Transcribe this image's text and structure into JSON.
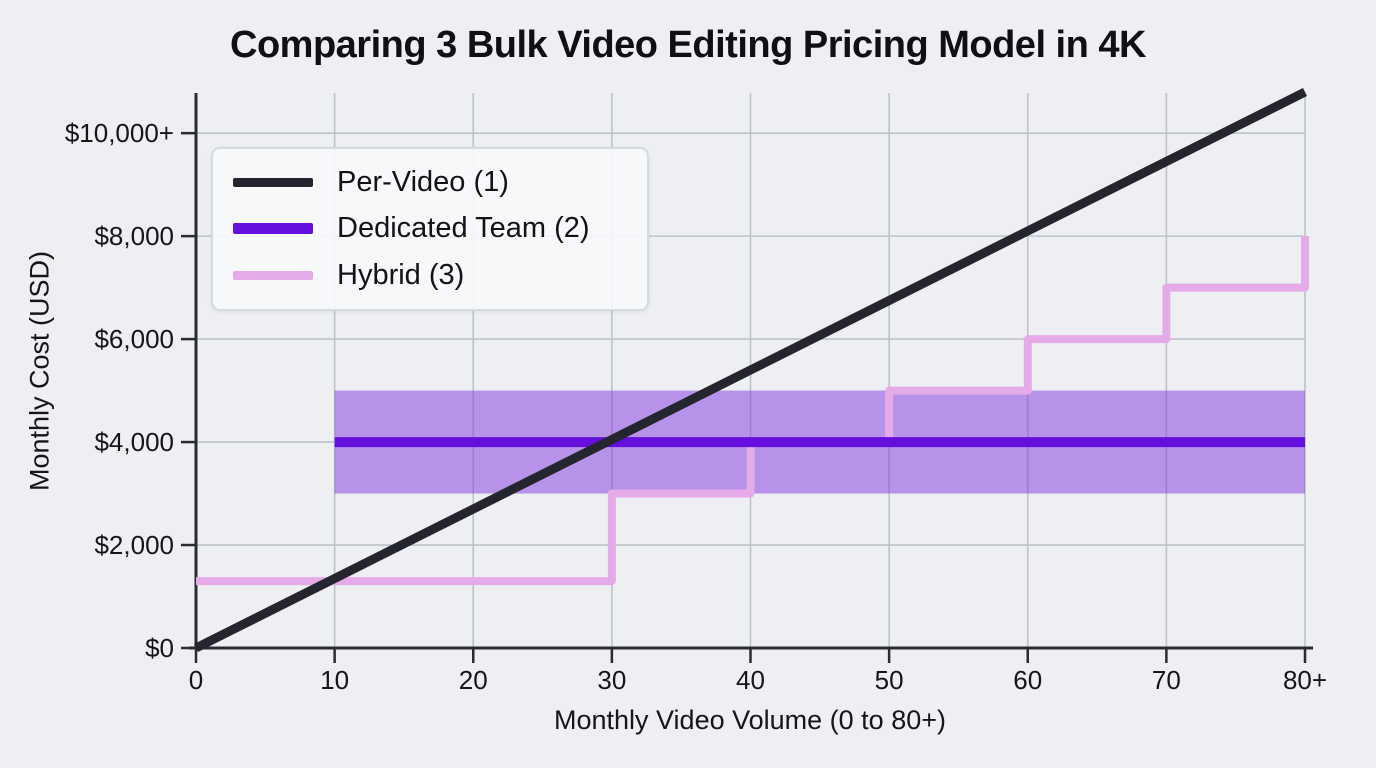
{
  "chart_data": {
    "type": "line",
    "title": "Comparing 3 Bulk Video Editing Pricing Model in 4K",
    "xlabel": "Monthly Video Volume (0 to 80+)",
    "ylabel": "Monthly Cost (USD)",
    "xlim": [
      0,
      80
    ],
    "ylim": [
      0,
      10780
    ],
    "grid": true,
    "legend_position": "upper-left",
    "x_ticks": [
      {
        "v": 0,
        "label": "0",
        "grid": false
      },
      {
        "v": 10,
        "label": "10",
        "grid": true
      },
      {
        "v": 20,
        "label": "20",
        "grid": true
      },
      {
        "v": 30,
        "label": "30",
        "grid": true
      },
      {
        "v": 40,
        "label": "40",
        "grid": true
      },
      {
        "v": 50,
        "label": "50",
        "grid": true
      },
      {
        "v": 60,
        "label": "60",
        "grid": true
      },
      {
        "v": 70,
        "label": "70",
        "grid": true
      },
      {
        "v": 80,
        "label": "80+",
        "grid": true
      }
    ],
    "y_ticks": [
      {
        "v": 0,
        "label": "$0",
        "grid": false
      },
      {
        "v": 2000,
        "label": "$2,000",
        "grid": true
      },
      {
        "v": 4000,
        "label": "$4,000",
        "grid": true
      },
      {
        "v": 6000,
        "label": "$6,000",
        "grid": true
      },
      {
        "v": 8000,
        "label": "$8,000",
        "grid": true
      },
      {
        "v": 10000,
        "label": "$10,000+",
        "grid": true
      }
    ],
    "band": {
      "name": "dedicated-team-range",
      "x0": 10,
      "x1": 80,
      "y0": 3000,
      "y1": 5000,
      "color": "rgba(122,45,221,0.48)"
    },
    "series": [
      {
        "name": "Hybrid (3)",
        "color": "#e5abe9",
        "width": 8,
        "points": [
          [
            0,
            1300
          ],
          [
            30,
            1300
          ],
          [
            30,
            3000
          ],
          [
            40,
            3000
          ],
          [
            40,
            4000
          ],
          [
            50,
            4000
          ],
          [
            50,
            5000
          ],
          [
            60,
            5000
          ],
          [
            60,
            6000
          ],
          [
            70,
            6000
          ],
          [
            70,
            7000
          ],
          [
            80,
            7000
          ],
          [
            80,
            8000
          ]
        ]
      },
      {
        "name": "Dedicated Team (2)",
        "color": "#640fdd",
        "width": 10,
        "points": [
          [
            10,
            4000
          ],
          [
            80,
            4000
          ]
        ]
      },
      {
        "name": "Per-Video (1)",
        "color": "#25252f",
        "width": 9,
        "points": [
          [
            0,
            0
          ],
          [
            80,
            10800
          ]
        ]
      }
    ],
    "legend": {
      "items": [
        {
          "label": "Per-Video (1)",
          "color": "#25252f",
          "thickness": 9
        },
        {
          "label": "Dedicated Team (2)",
          "color": "#640fdd",
          "thickness": 11
        },
        {
          "label": "Hybrid (3)",
          "color": "#e5abe9",
          "thickness": 9
        }
      ]
    },
    "colors": {
      "background": "#edeff3",
      "grid": "#bfc3c9",
      "spine": "#2b2b33",
      "text": "#15151b"
    }
  }
}
